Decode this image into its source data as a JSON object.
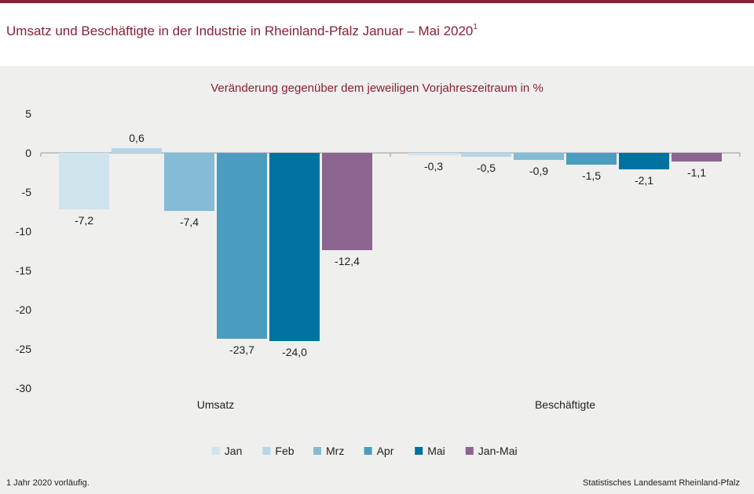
{
  "header": {
    "title": "Umsatz und Beschäftigte in der Industrie in Rheinland-Pfalz Januar – Mai 2020",
    "title_footnote_mark": "1"
  },
  "footer": {
    "footnote": "1 Jahr 2020 vorläufig.",
    "source": "Statistisches Landesamt Rheinland-Pfalz"
  },
  "colors": {
    "brand": "#8a1f35",
    "panel": "#efefed"
  },
  "chart_data": {
    "type": "bar",
    "title": "Veränderung gegenüber dem jeweiligen Vorjahreszeitraum in %",
    "categories": [
      "Umsatz",
      "Beschäftigte"
    ],
    "ylim": [
      -30,
      5
    ],
    "yticks": [
      "5",
      "0",
      "-5",
      "-10",
      "-15",
      "-20",
      "-25",
      "-30"
    ],
    "ytick_values": [
      5,
      0,
      -5,
      -10,
      -15,
      -20,
      -25,
      -30
    ],
    "grid": false,
    "legend_position": "bottom",
    "series": [
      {
        "name": "Jan",
        "color": "#d0e4ee",
        "values": [
          -7.2,
          -0.3
        ],
        "labels": [
          "-7,2",
          "-0,3"
        ]
      },
      {
        "name": "Feb",
        "color": "#b5d7e7",
        "values": [
          0.6,
          -0.5
        ],
        "labels": [
          "0,6",
          "-0,5"
        ]
      },
      {
        "name": "Mrz",
        "color": "#85bbd6",
        "values": [
          -7.4,
          -0.9
        ],
        "labels": [
          "-7,4",
          "-0,9"
        ]
      },
      {
        "name": "Apr",
        "color": "#4b9dc0",
        "values": [
          -23.7,
          -1.5
        ],
        "labels": [
          "-23,7",
          "-1,5"
        ]
      },
      {
        "name": "Mai",
        "color": "#0072a0",
        "values": [
          -24.0,
          -2.1
        ],
        "labels": [
          "-24,0",
          "-2,1"
        ]
      },
      {
        "name": "Jan-Mai",
        "color": "#8c6590",
        "values": [
          -12.4,
          -1.1
        ],
        "labels": [
          "-12,4",
          "-1,1"
        ]
      }
    ]
  }
}
